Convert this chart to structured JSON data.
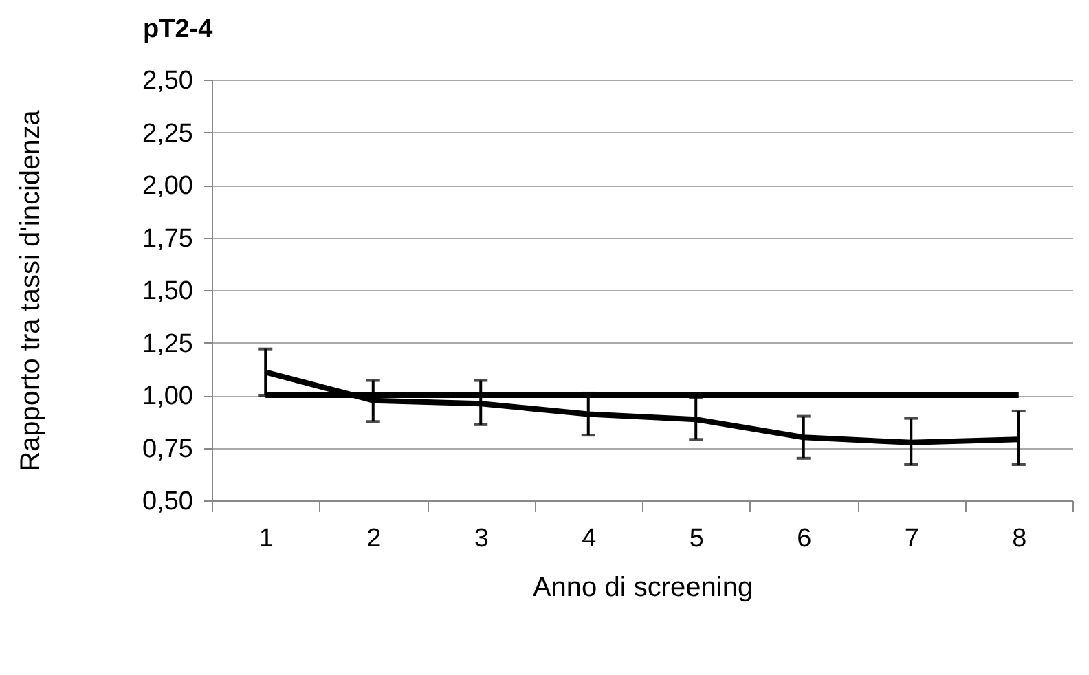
{
  "chart_data": {
    "type": "line",
    "title": "pT2-4",
    "xlabel": "Anno di screening",
    "ylabel": "Rapporto tra tassi d'incidenza",
    "categories": [
      "1",
      "2",
      "3",
      "4",
      "5",
      "6",
      "7",
      "8"
    ],
    "series": [
      {
        "color": "#000000",
        "values": [
          1.11,
          0.975,
          0.96,
          0.91,
          0.885,
          0.8,
          0.775,
          0.79
        ],
        "errors": [
          [
            1.0,
            1.22
          ],
          [
            0.875,
            1.07
          ],
          [
            0.86,
            1.07
          ],
          [
            0.81,
            1.01
          ],
          [
            0.79,
            0.99
          ],
          [
            0.7,
            0.9
          ],
          [
            0.67,
            0.89
          ],
          [
            0.67,
            0.925
          ]
        ]
      },
      {
        "color": "#000000",
        "values": [
          1,
          1,
          1,
          1,
          1,
          1,
          1,
          1
        ]
      }
    ],
    "ylim": [
      0.5,
      2.5
    ],
    "yticks": [
      {
        "value": 0.5,
        "label": "0,50"
      },
      {
        "value": 0.75,
        "label": "0,75"
      },
      {
        "value": 1,
        "label": "1,00"
      },
      {
        "value": 1.25,
        "label": "1,25"
      },
      {
        "value": 1.5,
        "label": "1,50"
      },
      {
        "value": 1.75,
        "label": "1,75"
      },
      {
        "value": 2,
        "label": "2,00"
      },
      {
        "value": 2.25,
        "label": "2,25"
      },
      {
        "value": 2.5,
        "label": "2,50"
      }
    ],
    "grid": "y",
    "marker": "none",
    "line_style": "solid"
  }
}
